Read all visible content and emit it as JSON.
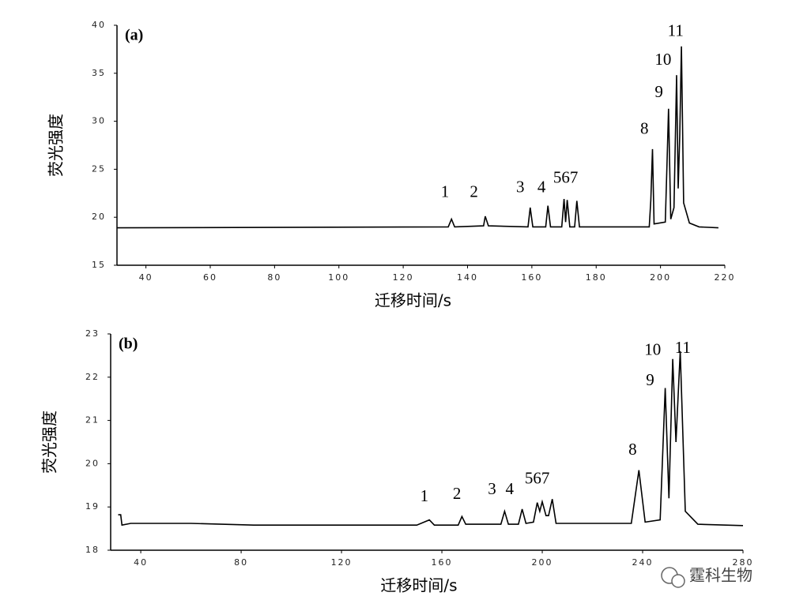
{
  "chart_data": [
    {
      "type": "line",
      "panel_label": "(a)",
      "xlabel": "迁移时间/s",
      "ylabel": "荧光强度",
      "color": "#000000",
      "xlim": [
        31,
        220
      ],
      "xticks": [
        40,
        60,
        80,
        100,
        120,
        140,
        160,
        180,
        200,
        220
      ],
      "ylim": [
        15,
        40
      ],
      "yticks": [
        15,
        20,
        25,
        30,
        35,
        40
      ],
      "x": [
        31,
        134,
        135,
        136,
        145,
        145.5,
        146.5,
        158.8,
        159.5,
        160.3,
        164.3,
        165,
        165.8,
        169.3,
        170,
        170.5,
        171,
        171.8,
        173.3,
        174,
        174.8,
        196.5,
        197,
        197.5,
        198,
        201.5,
        202,
        202.5,
        203.2,
        204.2,
        205,
        205.5,
        206,
        206.5,
        207.2,
        209,
        212,
        218
      ],
      "values": [
        18.9,
        19.0,
        19.8,
        19.0,
        19.1,
        20.1,
        19.1,
        19.0,
        21.0,
        19.0,
        19.0,
        21.2,
        19.0,
        19.0,
        21.9,
        19.5,
        21.8,
        19.0,
        19.0,
        21.7,
        19.0,
        19.0,
        21.8,
        27.1,
        19.3,
        19.5,
        25.4,
        31.3,
        19.8,
        21.0,
        34.8,
        23.0,
        28.6,
        37.8,
        21.5,
        19.4,
        19.0,
        18.9
      ],
      "annotations": [
        {
          "text": "1",
          "x": 133,
          "y": 22.5
        },
        {
          "text": "2",
          "x": 142,
          "y": 22.5
        },
        {
          "text": "3",
          "x": 156.4,
          "y": 23.0
        },
        {
          "text": "4",
          "x": 163,
          "y": 23.0
        },
        {
          "text": "567",
          "x": 170.5,
          "y": 24.0
        },
        {
          "text": "8",
          "x": 195,
          "y": 29.1
        },
        {
          "text": "9",
          "x": 199.5,
          "y": 32.9
        },
        {
          "text": "10",
          "x": 200.8,
          "y": 36.3
        },
        {
          "text": "11",
          "x": 204.7,
          "y": 39.3
        }
      ]
    },
    {
      "type": "line",
      "panel_label": "(b)",
      "xlabel": "迁移时间/s",
      "ylabel": "荧光强度",
      "color": "#000000",
      "xlim": [
        28,
        280
      ],
      "xticks": [
        40,
        80,
        120,
        160,
        200,
        240,
        280
      ],
      "ylim": [
        18,
        23
      ],
      "yticks": [
        18,
        19,
        20,
        21,
        22,
        23
      ],
      "x": [
        31,
        32,
        32.5,
        36,
        60,
        85,
        150,
        155,
        157,
        166.5,
        168,
        169.5,
        183.5,
        185,
        186.5,
        190.5,
        192,
        193.5,
        196.5,
        198,
        199,
        200,
        201.5,
        202.5,
        204,
        205.5,
        235.5,
        238.5,
        241,
        247,
        249,
        250.5,
        252,
        253.3,
        255,
        257,
        262,
        280
      ],
      "values": [
        18.82,
        18.82,
        18.58,
        18.62,
        18.62,
        18.58,
        18.58,
        18.7,
        18.58,
        18.58,
        18.78,
        18.6,
        18.6,
        18.9,
        18.6,
        18.6,
        18.95,
        18.62,
        18.65,
        19.1,
        18.9,
        19.12,
        18.8,
        18.8,
        19.18,
        18.62,
        18.62,
        19.85,
        18.65,
        18.7,
        21.75,
        19.2,
        22.42,
        20.5,
        22.6,
        18.9,
        18.6,
        18.57
      ],
      "annotations": [
        {
          "text": "1",
          "x": 153,
          "y": 19.22
        },
        {
          "text": "2",
          "x": 166,
          "y": 19.27
        },
        {
          "text": "3",
          "x": 180,
          "y": 19.38
        },
        {
          "text": "4",
          "x": 187,
          "y": 19.38
        },
        {
          "text": "567",
          "x": 198,
          "y": 19.63
        },
        {
          "text": "8",
          "x": 236,
          "y": 20.3
        },
        {
          "text": "9",
          "x": 243,
          "y": 21.9
        },
        {
          "text": "10",
          "x": 244,
          "y": 22.6
        },
        {
          "text": "11",
          "x": 256,
          "y": 22.65
        }
      ]
    }
  ],
  "watermark": "霆科生物"
}
